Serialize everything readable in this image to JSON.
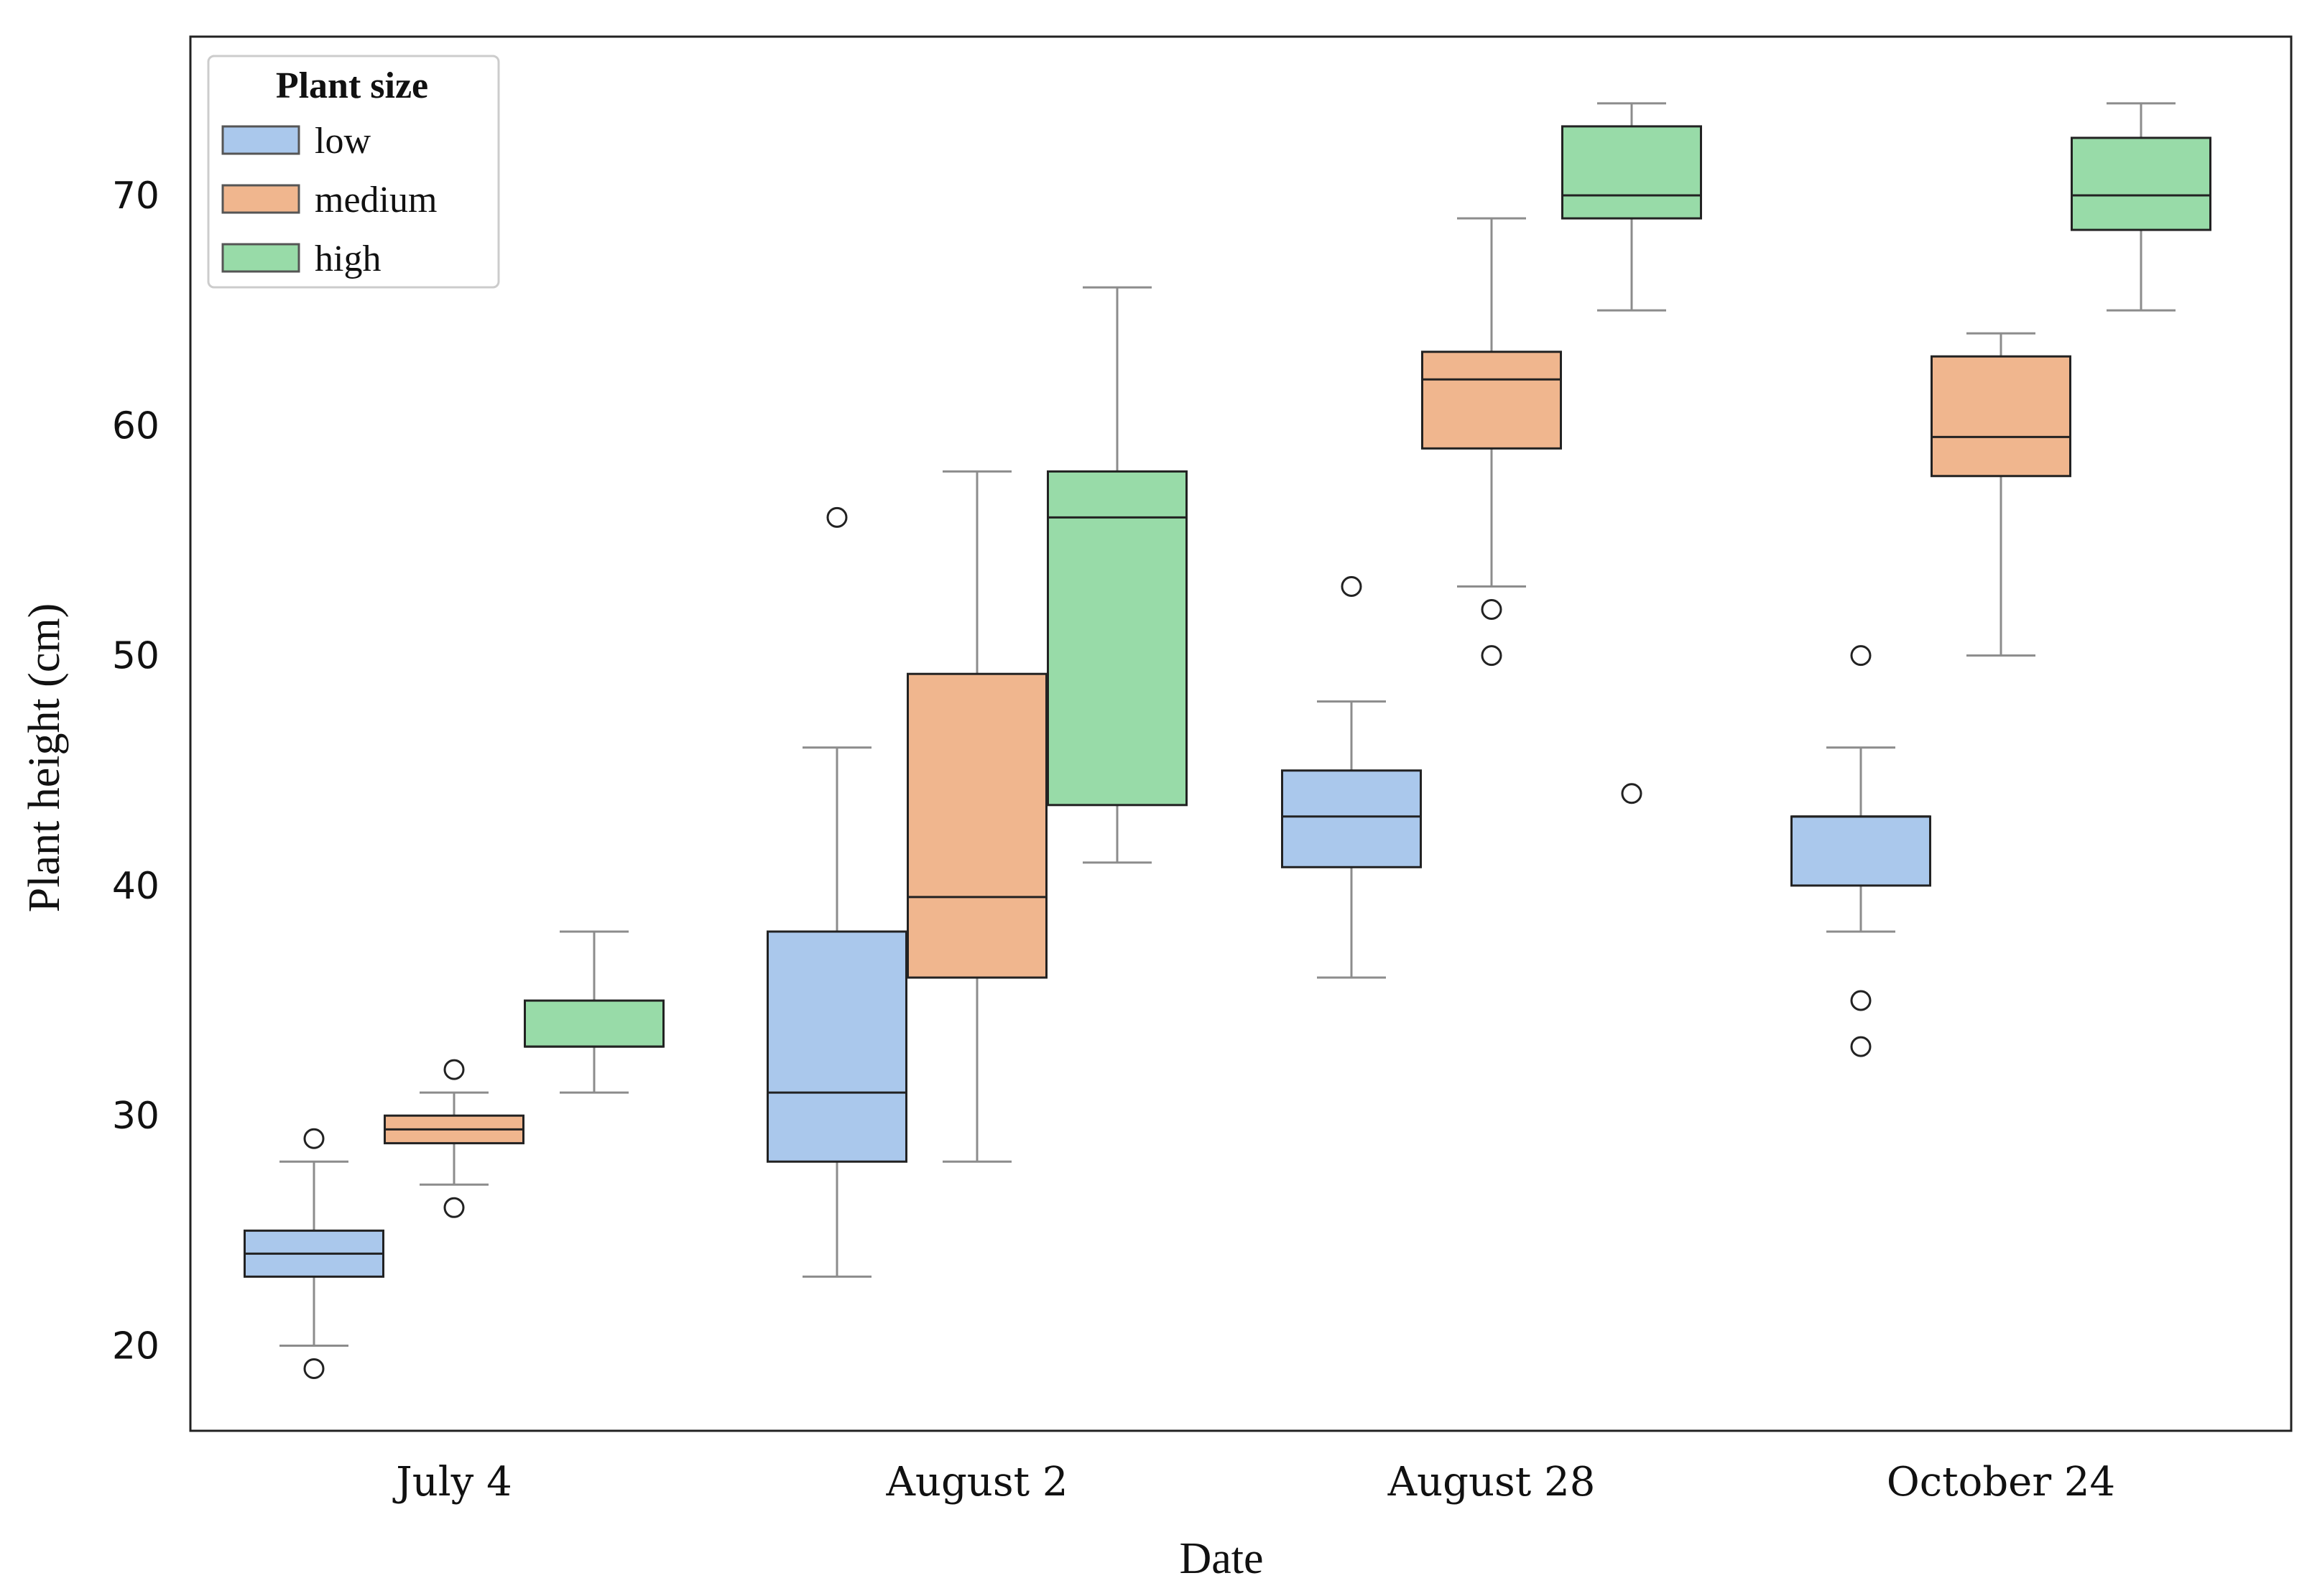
{
  "colors": {
    "low": "#aac8ec",
    "medium": "#f0b68e",
    "high": "#98dba8",
    "box_edge": "#222222",
    "whisker": "#8c8c8c"
  },
  "chart_data": {
    "type": "box",
    "title": "",
    "xlabel": "Date",
    "ylabel": "Plant height (cm)",
    "ylim": [
      16.3,
      76.9
    ],
    "yticks": [
      20,
      30,
      40,
      50,
      60,
      70
    ],
    "categories": [
      "July 4",
      "August 2",
      "August 28",
      "October 24"
    ],
    "legend": {
      "title": "Plant size",
      "position": "top-left",
      "entries": [
        "low",
        "medium",
        "high"
      ]
    },
    "series": [
      {
        "name": "low",
        "boxes": [
          {
            "whislo": 20,
            "q1": 23,
            "med": 24,
            "q3": 25,
            "whishi": 28,
            "fliers": [
              29,
              19
            ]
          },
          {
            "whislo": 23,
            "q1": 28,
            "med": 31,
            "q3": 38,
            "whishi": 46,
            "fliers": [
              56
            ]
          },
          {
            "whislo": 36,
            "q1": 40.8,
            "med": 43,
            "q3": 45,
            "whishi": 48,
            "fliers": [
              53
            ]
          },
          {
            "whislo": 38,
            "q1": 40,
            "med": 43,
            "q3": 43,
            "whishi": 46,
            "fliers": [
              50,
              35,
              33
            ]
          }
        ]
      },
      {
        "name": "medium",
        "boxes": [
          {
            "whislo": 27,
            "q1": 28.8,
            "med": 29.4,
            "q3": 30,
            "whishi": 31,
            "fliers": [
              32,
              26
            ]
          },
          {
            "whislo": 28,
            "q1": 36,
            "med": 39.5,
            "q3": 49.2,
            "whishi": 58,
            "fliers": []
          },
          {
            "whislo": 53,
            "q1": 59,
            "med": 62,
            "q3": 63.2,
            "whishi": 69,
            "fliers": [
              52,
              50
            ]
          },
          {
            "whislo": 50,
            "q1": 57.8,
            "med": 59.5,
            "q3": 63,
            "whishi": 64,
            "fliers": []
          }
        ]
      },
      {
        "name": "high",
        "boxes": [
          {
            "whislo": 31,
            "q1": 33,
            "med": 33,
            "q3": 35,
            "whishi": 38,
            "fliers": []
          },
          {
            "whislo": 41,
            "q1": 43.5,
            "med": 56,
            "q3": 58,
            "whishi": 66,
            "fliers": []
          },
          {
            "whislo": 65,
            "q1": 69,
            "med": 70,
            "q3": 73,
            "whishi": 74,
            "fliers": [
              44
            ]
          },
          {
            "whislo": 65,
            "q1": 68.5,
            "med": 70,
            "q3": 72.5,
            "whishi": 74,
            "fliers": []
          }
        ]
      }
    ]
  }
}
